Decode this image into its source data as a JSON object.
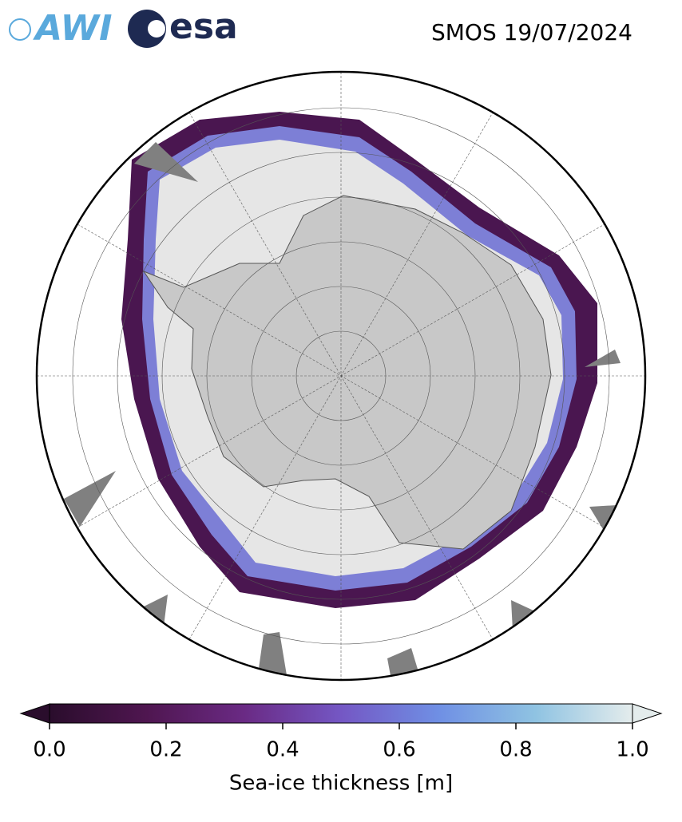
{
  "header": {
    "logos": [
      "AWI",
      "esa"
    ],
    "title": "SMOS 19/07/2024"
  },
  "colorbar": {
    "label": "Sea-ice thickness [m]",
    "range": [
      0,
      1
    ],
    "ticks": [
      {
        "value": 0,
        "label": "0.0"
      },
      0.2,
      0.4,
      0.6,
      0.8,
      {
        "value": 1,
        "label": "1.0"
      }
    ],
    "colors": [
      "#2a0d2c",
      "#4f1650",
      "#6a2a84",
      "#7457c4",
      "#6f8fe4",
      "#8fc3e2",
      "#e4ecec"
    ]
  }
}
